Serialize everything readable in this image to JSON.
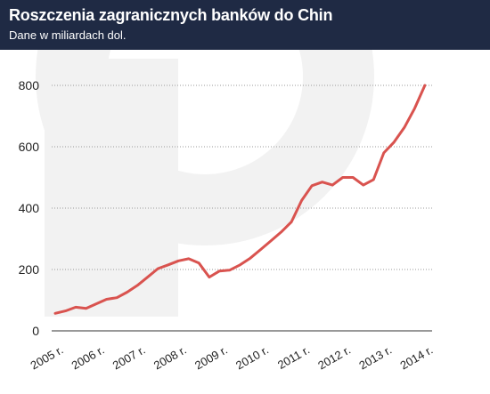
{
  "chart_data": {
    "type": "line",
    "title": "Roszczenia zagranicznych banków do Chin",
    "subtitle": "Dane w miliardach dol.",
    "xlabel": "",
    "ylabel": "",
    "x_tick_labels": [
      "2005 r.",
      "2006 r.",
      "2007 r.",
      "2008 r.",
      "2009 r.",
      "2010 r.",
      "2011 r.",
      "2012 r.",
      "2013 r.",
      "2014 r."
    ],
    "y_ticks": [
      0,
      200,
      400,
      600,
      800
    ],
    "ylim": [
      0,
      800
    ],
    "grid": true,
    "series": [
      {
        "color": "#d9534f",
        "points": [
          [
            "2005 Q1",
            57
          ],
          [
            "2005 Q2",
            65
          ],
          [
            "2005 Q3",
            77
          ],
          [
            "2005 Q4",
            73
          ],
          [
            "2006 Q1",
            88
          ],
          [
            "2006 Q2",
            103
          ],
          [
            "2006 Q3",
            108
          ],
          [
            "2006 Q4",
            126
          ],
          [
            "2007 Q1",
            148
          ],
          [
            "2007 Q2",
            175
          ],
          [
            "2007 Q3",
            203
          ],
          [
            "2007 Q4",
            215
          ],
          [
            "2008 Q1",
            228
          ],
          [
            "2008 Q2",
            235
          ],
          [
            "2008 Q3",
            221
          ],
          [
            "2008 Q4",
            175
          ],
          [
            "2009 Q1",
            195
          ],
          [
            "2009 Q2",
            198
          ],
          [
            "2009 Q3",
            215
          ],
          [
            "2009 Q4",
            237
          ],
          [
            "2010 Q1",
            265
          ],
          [
            "2010 Q2",
            293
          ],
          [
            "2010 Q3",
            322
          ],
          [
            "2010 Q4",
            355
          ],
          [
            "2011 Q1",
            425
          ],
          [
            "2011 Q2",
            473
          ],
          [
            "2011 Q3",
            485
          ],
          [
            "2011 Q4",
            475
          ],
          [
            "2012 Q1",
            500
          ],
          [
            "2012 Q2",
            500
          ],
          [
            "2012 Q3",
            475
          ],
          [
            "2012 Q4",
            493
          ],
          [
            "2013 Q1",
            580
          ],
          [
            "2013 Q2",
            615
          ],
          [
            "2013 Q3",
            663
          ],
          [
            "2013 Q4",
            725
          ],
          [
            "2014 Q1",
            800
          ]
        ]
      }
    ]
  },
  "colors": {
    "header_bg": "#1f2a44",
    "line": "#d9534f",
    "grid": "#999999",
    "axis_text": "#222222",
    "watermark": "#f2f2f2"
  }
}
